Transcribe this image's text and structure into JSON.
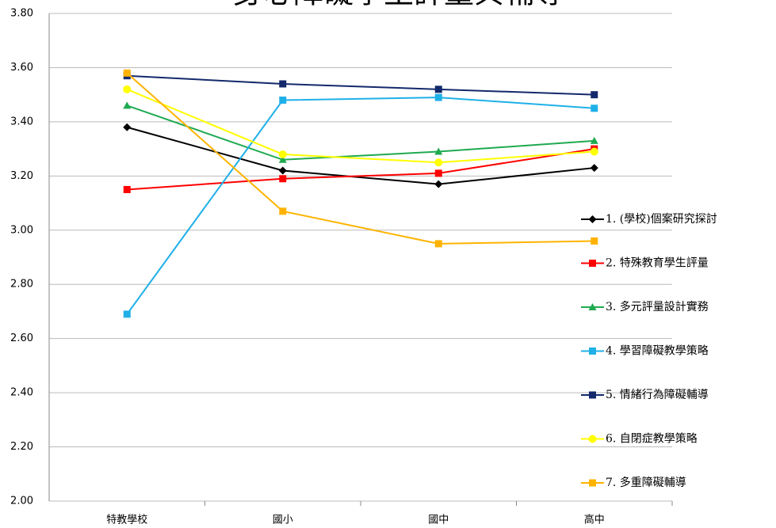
{
  "chart_data": {
    "type": "line",
    "title": "身心障礙學生評量與輔導",
    "categories": [
      "特教學校",
      "國小",
      "國中",
      "高中"
    ],
    "series": [
      {
        "name": "1. (學校)個案研究探討",
        "color": "#000000",
        "marker": "diamond",
        "values": [
          3.38,
          3.22,
          3.17,
          3.23
        ]
      },
      {
        "name": "2. 特殊教育學生評量",
        "color": "#ff0000",
        "marker": "square",
        "values": [
          3.15,
          3.19,
          3.21,
          3.3
        ]
      },
      {
        "name": "3. 多元評量設計實務",
        "color": "#1faa50",
        "marker": "triangle",
        "values": [
          3.46,
          3.26,
          3.29,
          3.33
        ]
      },
      {
        "name": "4. 學習障礙教學策略",
        "color": "#1fb0e8",
        "marker": "square",
        "values": [
          2.69,
          3.48,
          3.49,
          3.45
        ]
      },
      {
        "name": "5. 情緒行為障礙輔導",
        "color": "#13296b",
        "marker": "square",
        "values": [
          3.57,
          3.54,
          3.52,
          3.5
        ]
      },
      {
        "name": "6. 自閉症教學策略",
        "color": "#ffff00",
        "marker": "circle",
        "values": [
          3.52,
          3.28,
          3.25,
          3.29
        ]
      },
      {
        "name": "7. 多重障礙輔導",
        "color": "#ffb300",
        "marker": "square",
        "values": [
          3.58,
          3.07,
          2.95,
          2.96
        ]
      }
    ],
    "ylim": [
      2.0,
      3.8
    ],
    "yticks": [
      {
        "value": 2.0,
        "label": "2.00"
      },
      {
        "value": 2.2,
        "label": "2.20"
      },
      {
        "value": 2.4,
        "label": "2.40"
      },
      {
        "value": 2.6,
        "label": "2.60"
      },
      {
        "value": 2.8,
        "label": "2.80"
      },
      {
        "value": 3.0,
        "label": "3.00"
      },
      {
        "value": 3.2,
        "label": "3.20"
      },
      {
        "value": 3.4,
        "label": "3.40"
      },
      {
        "value": 3.6,
        "label": "3.60"
      },
      {
        "value": 3.8,
        "label": "3.80"
      }
    ],
    "grid": true
  }
}
